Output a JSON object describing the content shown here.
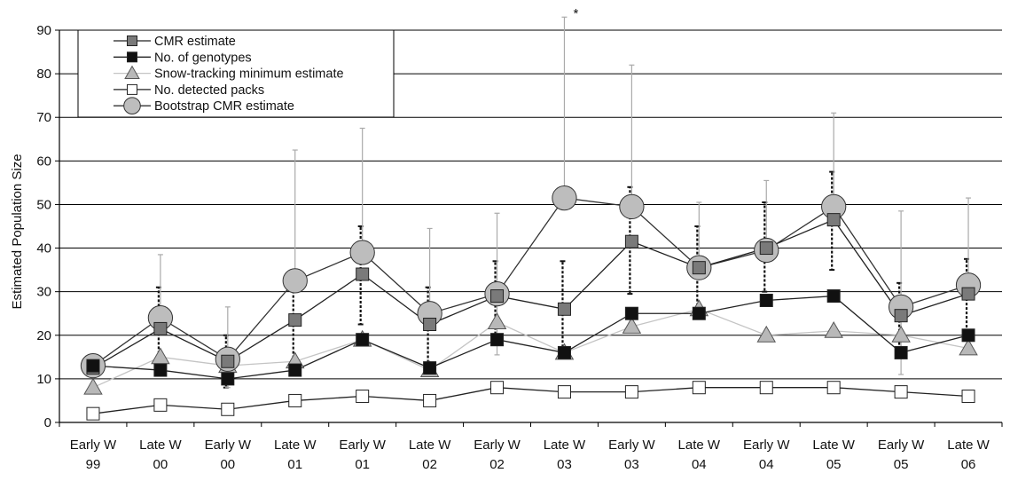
{
  "chart_data": {
    "type": "line",
    "title": "",
    "ylabel": "Estimated Population Size",
    "xlabel": "",
    "ylim": [
      0,
      90
    ],
    "yticks": [
      0,
      10,
      20,
      30,
      40,
      50,
      60,
      70,
      80,
      90
    ],
    "grid": "horizontal",
    "legend_position": "top-left",
    "categories": [
      [
        "Early W",
        "99"
      ],
      [
        "Late W",
        "00"
      ],
      [
        "Early W",
        "00"
      ],
      [
        "Late W",
        "01"
      ],
      [
        "Early W",
        "01"
      ],
      [
        "Late W",
        "02"
      ],
      [
        "Early W",
        "02"
      ],
      [
        "Late W",
        "03"
      ],
      [
        "Early W",
        "03"
      ],
      [
        "Late W",
        "04"
      ],
      [
        "Early W",
        "04"
      ],
      [
        "Late W",
        "05"
      ],
      [
        "Early W",
        "05"
      ],
      [
        "Late W",
        "06"
      ]
    ],
    "annotation": "*",
    "series": [
      {
        "name": "CMR estimate",
        "marker": "square",
        "fill": "#7a7a7a",
        "line": "#222222",
        "values": [
          12.5,
          21.5,
          14,
          23.5,
          34,
          22.5,
          29,
          26,
          41.5,
          35.5,
          40,
          46.5,
          24.5,
          29.5
        ],
        "error_style": "dotted",
        "error_low": [
          11.5,
          14.5,
          8,
          12.5,
          22.5,
          12,
          19,
          15,
          29.5,
          24.5,
          30,
          35,
          17,
          20
        ],
        "error_high": [
          13.5,
          31,
          20,
          34,
          45,
          31,
          37,
          37,
          54,
          45,
          50.5,
          57.5,
          32,
          37.5
        ]
      },
      {
        "name": "No. of genotypes",
        "marker": "square",
        "fill": "#111111",
        "line": "#222222",
        "values": [
          13,
          12,
          10,
          12,
          19,
          12.5,
          19,
          16,
          25,
          25,
          28,
          29,
          16,
          20
        ]
      },
      {
        "name": "Snow-tracking minimum estimate",
        "marker": "triangle",
        "fill": "#b8b8b8",
        "line": "#c4c4c4",
        "values": [
          8,
          15,
          13,
          14,
          19,
          12,
          23,
          16,
          22,
          26,
          20,
          21,
          20,
          17
        ]
      },
      {
        "name": "No. detected packs",
        "marker": "square",
        "fill": "#ffffff",
        "line": "#222222",
        "values": [
          2,
          4,
          3,
          5,
          6,
          5,
          8,
          7,
          7,
          8,
          8,
          8,
          7,
          6
        ]
      },
      {
        "name": "Bootstrap CMR estimate",
        "marker": "circle",
        "fill": "#bdbdbd",
        "line": "#333333",
        "values": [
          13,
          24,
          14.5,
          32.5,
          39,
          25,
          29.5,
          51.5,
          49.5,
          35.5,
          39.5,
          49.5,
          26.5,
          31.5
        ],
        "error_style": "solid",
        "error_high": [
          13,
          38.5,
          26.5,
          62.5,
          67.5,
          44.5,
          48,
          93,
          82,
          50.5,
          55.5,
          71,
          48.5,
          51.5
        ],
        "error_low": [
          13,
          24,
          8,
          32.5,
          39,
          25,
          15.5,
          51.5,
          49.5,
          35.5,
          39.5,
          49.5,
          11,
          31.5
        ]
      }
    ]
  }
}
